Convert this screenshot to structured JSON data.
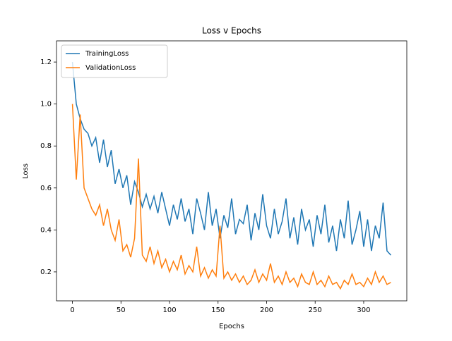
{
  "chart_data": {
    "type": "line",
    "title": "Loss v Epochs",
    "xlabel": "Epochs",
    "ylabel": "Loss",
    "x": [
      0,
      4,
      8,
      12,
      16,
      20,
      24,
      28,
      32,
      36,
      40,
      44,
      48,
      52,
      56,
      60,
      64,
      68,
      72,
      76,
      80,
      84,
      88,
      92,
      96,
      100,
      104,
      108,
      112,
      116,
      120,
      124,
      128,
      132,
      136,
      140,
      144,
      148,
      152,
      156,
      160,
      164,
      168,
      172,
      176,
      180,
      184,
      188,
      192,
      196,
      200,
      204,
      208,
      212,
      216,
      220,
      224,
      228,
      232,
      236,
      240,
      244,
      248,
      252,
      256,
      260,
      264,
      268,
      272,
      276,
      280,
      284,
      288,
      292,
      296,
      300,
      304,
      308,
      312,
      316,
      320,
      324,
      328
    ],
    "series": [
      {
        "name": "TrainingLoss",
        "color": "#1f77b4",
        "values": [
          1.2,
          1.0,
          0.93,
          0.88,
          0.86,
          0.8,
          0.84,
          0.72,
          0.83,
          0.7,
          0.78,
          0.62,
          0.69,
          0.6,
          0.66,
          0.52,
          0.63,
          0.58,
          0.51,
          0.57,
          0.5,
          0.56,
          0.48,
          0.58,
          0.5,
          0.42,
          0.52,
          0.45,
          0.55,
          0.44,
          0.5,
          0.38,
          0.55,
          0.48,
          0.4,
          0.58,
          0.42,
          0.5,
          0.36,
          0.47,
          0.41,
          0.55,
          0.38,
          0.45,
          0.43,
          0.52,
          0.35,
          0.48,
          0.4,
          0.57,
          0.42,
          0.36,
          0.5,
          0.38,
          0.44,
          0.55,
          0.36,
          0.46,
          0.33,
          0.5,
          0.4,
          0.45,
          0.32,
          0.47,
          0.38,
          0.52,
          0.34,
          0.42,
          0.3,
          0.45,
          0.36,
          0.54,
          0.33,
          0.4,
          0.49,
          0.32,
          0.45,
          0.3,
          0.42,
          0.36,
          0.53,
          0.3,
          0.28
        ]
      },
      {
        "name": "ValidationLoss",
        "color": "#ff7f0e",
        "values": [
          1.0,
          0.64,
          0.95,
          0.6,
          0.55,
          0.5,
          0.47,
          0.52,
          0.42,
          0.5,
          0.4,
          0.35,
          0.45,
          0.3,
          0.33,
          0.27,
          0.36,
          0.74,
          0.28,
          0.25,
          0.32,
          0.24,
          0.3,
          0.22,
          0.26,
          0.2,
          0.25,
          0.21,
          0.28,
          0.19,
          0.23,
          0.2,
          0.32,
          0.18,
          0.22,
          0.17,
          0.21,
          0.18,
          0.42,
          0.17,
          0.2,
          0.16,
          0.19,
          0.15,
          0.18,
          0.14,
          0.16,
          0.21,
          0.15,
          0.19,
          0.16,
          0.24,
          0.15,
          0.18,
          0.14,
          0.2,
          0.15,
          0.17,
          0.13,
          0.19,
          0.15,
          0.14,
          0.2,
          0.14,
          0.16,
          0.13,
          0.18,
          0.14,
          0.15,
          0.12,
          0.16,
          0.14,
          0.19,
          0.14,
          0.15,
          0.13,
          0.17,
          0.14,
          0.2,
          0.15,
          0.18,
          0.14,
          0.15
        ]
      }
    ],
    "xlim": [
      -16.4,
      344.4
    ],
    "ylim": [
      0.062,
      1.301
    ],
    "xticks": [
      0,
      50,
      100,
      150,
      200,
      250,
      300
    ],
    "yticks": [
      0.2,
      0.4,
      0.6,
      0.8,
      {
        "value": 1,
        "label": "1.0"
      },
      1.2
    ],
    "legend": "upper left"
  }
}
